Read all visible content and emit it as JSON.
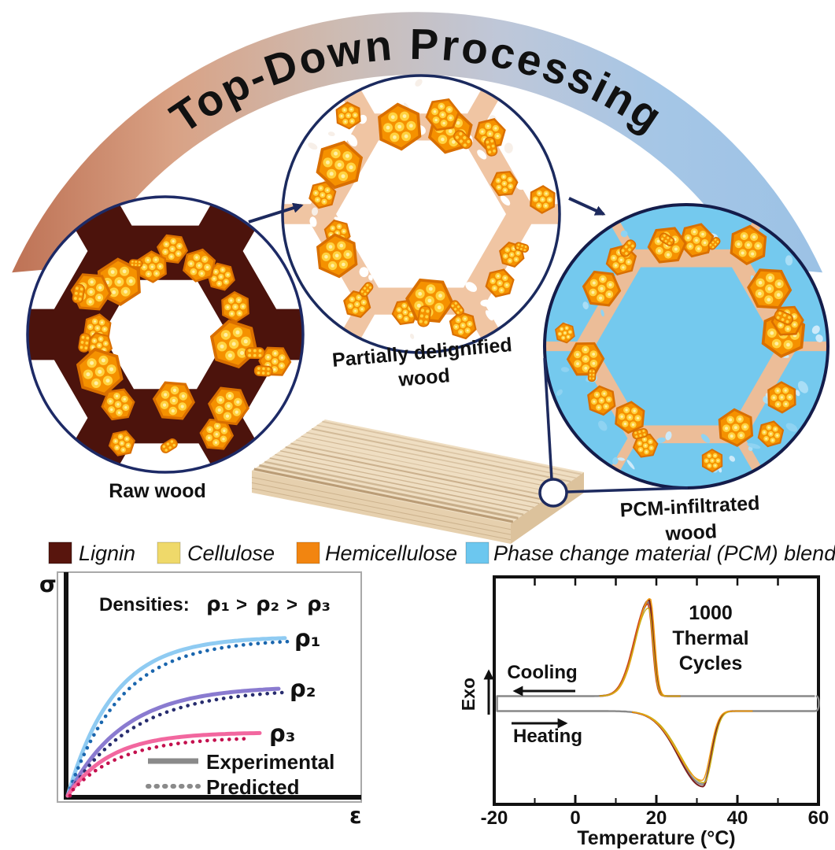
{
  "figure": {
    "banner": {
      "title": "Top-Down Processing",
      "text_color": "#1d2a5e",
      "gradient": [
        "#BE7255",
        "#D9A285",
        "#CDBBB2",
        "#BFC7D8",
        "#A5C6E6",
        "#9CC2E5"
      ]
    },
    "stages": [
      {
        "name": "raw-wood",
        "lines": [
          "Raw wood"
        ]
      },
      {
        "name": "partially-delignified-wood",
        "lines": [
          "Partially delignified",
          "wood"
        ]
      },
      {
        "name": "pcm-infiltrated-wood",
        "lines": [
          "PCM-infiltrated",
          "wood"
        ]
      }
    ],
    "legend": [
      {
        "label": "Lignin",
        "color": "#58150D"
      },
      {
        "label": "Cellulose",
        "color": "#EFD96A"
      },
      {
        "label": "Hemicellulose",
        "color": "#F28510"
      },
      {
        "label": "Phase change material (PCM) blend",
        "color": "#6CC7EF"
      }
    ]
  },
  "palette": {
    "outline": "#1d2a5e",
    "lignin": "#4C130C",
    "wall_peach": "#F0C5A3",
    "wall_peach_dark": "#ECBD98",
    "pcm_blue": "#74C9EE",
    "fibril_orange": "#F59100",
    "fibril_border": "#D96F00",
    "fibril_dot": "#FFD23F",
    "fibril_dot_core": "#FFF0A6",
    "wood_top": "#EFDEC2",
    "wood_grain": "#C9AE8A",
    "wood_front": "#E6D0AE",
    "wood_side": "#DCC29C",
    "wood_edge": "#C8AD88"
  },
  "chart_data": [
    {
      "type": "line",
      "kind": "schematic stress-strain compression curves",
      "title": "Densities: ρ₁ > ρ₂ > ρ₃",
      "title_parts": {
        "prefix": "Densities:",
        "rho1": "ρ₁",
        "gt1": ">",
        "rho2": "ρ₂",
        "gt2": ">",
        "rho3": "ρ₃"
      },
      "title_colors": {
        "prefix": "#111111",
        "rho1": "#2176C7",
        "rho2": "#2B2E83",
        "rho3": "#D01058"
      },
      "xlabel": "ε",
      "ylabel": "σ",
      "axes_numeric": false,
      "series": [
        {
          "label": "ρ₁",
          "solid_color": "#8FCBF2",
          "dot_color": "#1A66AE",
          "label_color": "#2176C7",
          "plateau_frac": 0.71
        },
        {
          "label": "ρ₂",
          "solid_color": "#8A7BD0",
          "dot_color": "#272C6E",
          "label_color": "#2B2E83",
          "plateau_frac": 0.49
        },
        {
          "label": "ρ₃",
          "solid_color": "#F2679F",
          "dot_color": "#C4104E",
          "label_color": "#D01058",
          "plateau_frac": 0.285
        }
      ],
      "legend": [
        {
          "label": "Experimental",
          "style": "solid",
          "color": "#8A8A8A"
        },
        {
          "label": "Predicted",
          "style": "dotted",
          "color": "#8A8A8A"
        }
      ]
    },
    {
      "type": "line",
      "kind": "DSC thermal cycling curves",
      "xlabel": "Temperature (°C)",
      "ylabel": "Exo",
      "xlim": [
        -20,
        60
      ],
      "xticks": [
        -20,
        0,
        20,
        40,
        60
      ],
      "annotation_lines": [
        "1000",
        "Thermal",
        "Cycles"
      ],
      "flows": [
        {
          "label": "Cooling",
          "direction": "left",
          "peak_c": 18,
          "type": "exothermic"
        },
        {
          "label": "Heating",
          "direction": "right",
          "peak_c": 32,
          "type": "endothermic"
        }
      ],
      "cycle_colors": [
        "#888888",
        "#7B211F",
        "#CF4A1B",
        "#F09A12",
        "#C9AE16"
      ]
    }
  ]
}
